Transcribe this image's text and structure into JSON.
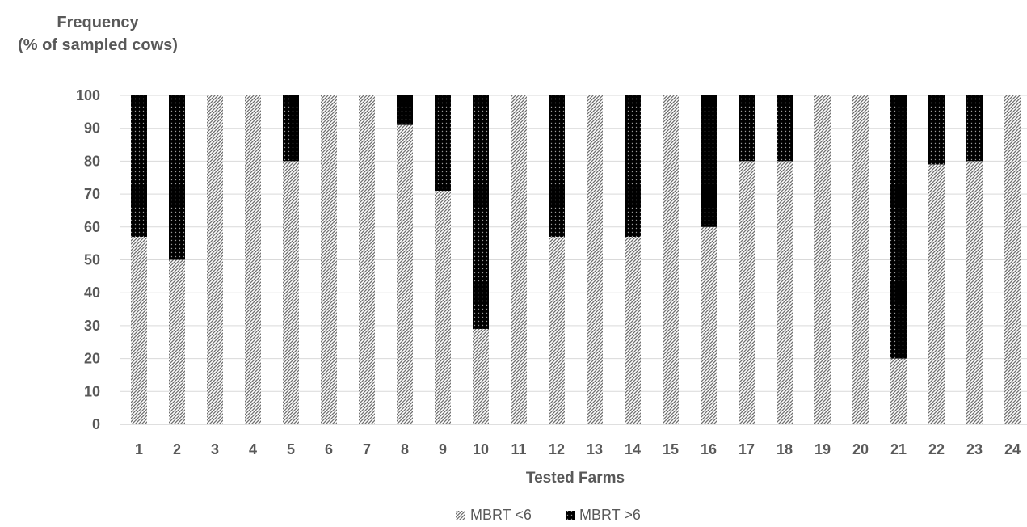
{
  "chart_data": {
    "type": "bar",
    "stacked": true,
    "title": "",
    "ylabel_lines": [
      "Frequency",
      "(% of sampled cows)"
    ],
    "xlabel": "Tested Farms",
    "ylim": [
      0,
      100
    ],
    "y_ticks": [
      0,
      10,
      20,
      30,
      40,
      50,
      60,
      70,
      80,
      90,
      100
    ],
    "grid": true,
    "legend_position": "bottom-center",
    "categories": [
      "1",
      "2",
      "3",
      "4",
      "5",
      "6",
      "7",
      "8",
      "9",
      "10",
      "11",
      "12",
      "13",
      "14",
      "15",
      "16",
      "17",
      "18",
      "19",
      "20",
      "21",
      "22",
      "23",
      "24"
    ],
    "series": [
      {
        "name": "MBRT <6",
        "pattern": "diagonal-hatch",
        "color": "#7f7f7f",
        "values": [
          57,
          50,
          100,
          100,
          80,
          100,
          100,
          91,
          71,
          29,
          100,
          57,
          100,
          57,
          100,
          60,
          80,
          80,
          100,
          100,
          20,
          79,
          80,
          100
        ]
      },
      {
        "name": "MBRT >6",
        "pattern": "dotted-black",
        "color": "#000000",
        "values": [
          43,
          50,
          0,
          0,
          20,
          0,
          0,
          9,
          29,
          71,
          0,
          43,
          0,
          43,
          0,
          40,
          20,
          20,
          0,
          0,
          80,
          21,
          20,
          0
        ]
      }
    ]
  }
}
